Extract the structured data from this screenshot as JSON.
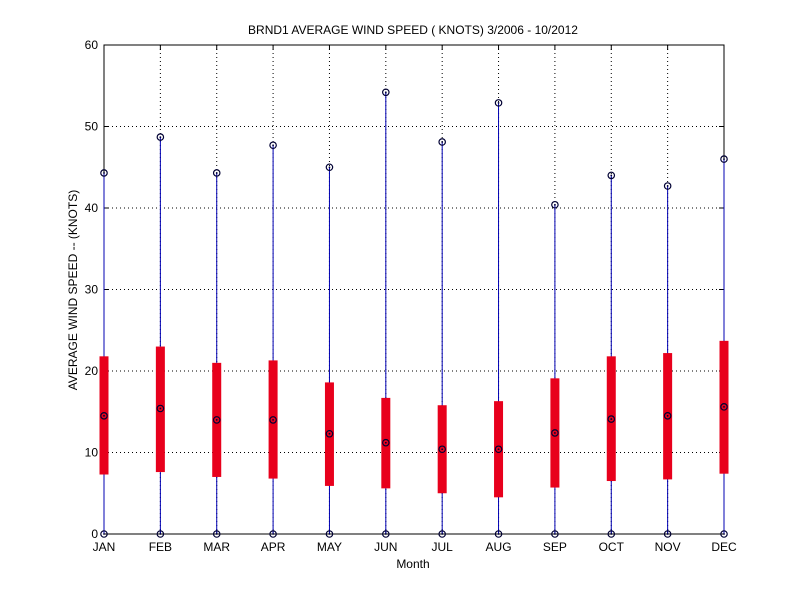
{
  "chart_data": {
    "type": "boxplot",
    "title": "BRND1  AVERAGE WIND SPEED ( KNOTS) 3/2006 - 10/2012",
    "xlabel": "Month",
    "ylabel": "AVERAGE WIND SPEED -- (KNOTS)",
    "ylim": [
      0,
      60
    ],
    "yticks": [
      0,
      10,
      20,
      30,
      40,
      50,
      60
    ],
    "grid": true,
    "categories": [
      "JAN",
      "FEB",
      "MAR",
      "APR",
      "MAY",
      "JUN",
      "JUL",
      "AUG",
      "SEP",
      "OCT",
      "NOV",
      "DEC"
    ],
    "series": [
      {
        "min": [
          0,
          0,
          0,
          0,
          0,
          0,
          0,
          0,
          0,
          0,
          0,
          0
        ],
        "q1": [
          7.3,
          7.6,
          7.0,
          6.8,
          5.9,
          5.6,
          5.0,
          4.5,
          5.7,
          6.5,
          6.7,
          7.4
        ],
        "median": [
          14.5,
          15.4,
          14.0,
          14.0,
          12.3,
          11.2,
          10.4,
          10.4,
          12.4,
          14.1,
          14.5,
          15.6
        ],
        "q3": [
          21.8,
          23.0,
          21.0,
          21.3,
          18.6,
          16.7,
          15.8,
          16.3,
          19.1,
          21.8,
          22.2,
          23.7
        ],
        "max": [
          44.3,
          48.7,
          44.3,
          47.7,
          45.0,
          54.2,
          48.1,
          52.9,
          40.4,
          44.0,
          42.7,
          46.0
        ]
      }
    ],
    "colors": {
      "whisker": "#0000b3",
      "box": "#e8001c",
      "marker": "#000033",
      "grid": "#000000",
      "axis": "#000000"
    }
  }
}
